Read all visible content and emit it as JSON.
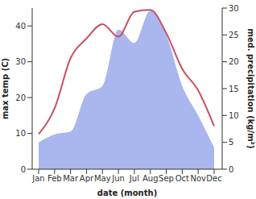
{
  "chart_data": {
    "type": "line",
    "x_label": "date (month)",
    "y_label": "max temp (C)",
    "y2_label": "med. precipitation (kg/m²)",
    "categories": [
      "Jan",
      "Feb",
      "Mar",
      "Apr",
      "May",
      "Jun",
      "Jul",
      "Aug",
      "Sep",
      "Oct",
      "Nov",
      "Dec"
    ],
    "ylim": [
      0,
      45
    ],
    "yticks": [
      0,
      10,
      20,
      30,
      40
    ],
    "y2lim": [
      0,
      30
    ],
    "y2ticks": [
      0,
      5,
      10,
      15,
      20,
      25,
      30
    ],
    "series": [
      {
        "name": "med. precipitation",
        "type": "area",
        "axis": "y2",
        "color": "#aab6ee",
        "values": [
          5,
          6.5,
          7,
          14,
          15.5,
          26,
          23.5,
          29.5,
          25,
          15.5,
          10,
          4
        ]
      },
      {
        "name": "max temp",
        "type": "line",
        "axis": "y",
        "color": "#c85060",
        "values": [
          9.8,
          17,
          31,
          36.5,
          40.5,
          37,
          44,
          44.5,
          38,
          28,
          22,
          12
        ]
      }
    ]
  }
}
